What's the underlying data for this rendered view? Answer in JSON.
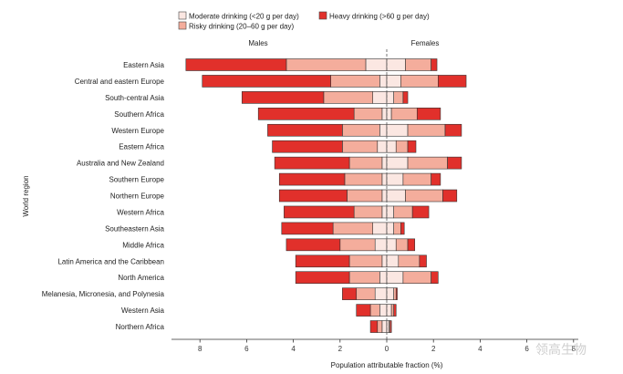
{
  "chart_data": {
    "type": "bar",
    "orientation": "horizontal",
    "stacked": true,
    "diverging": true,
    "legend": {
      "position": "top",
      "entries": [
        {
          "key": "moderate",
          "label": "Moderate drinking (<20 g per day)",
          "color": "#fbe7e2"
        },
        {
          "key": "heavy",
          "label": "Heavy drinking (>60 g per day)",
          "color": "#e1302b"
        },
        {
          "key": "risky",
          "label": "Risky drinking (20–60 g per day)",
          "color": "#f4ad9c"
        }
      ]
    },
    "side_labels": {
      "left": "Males",
      "right": "Females"
    },
    "xlabel": "Population attributable fraction (%)",
    "ylabel": "World region",
    "xlim": [
      -9,
      9
    ],
    "xticks": [
      {
        "value": -8,
        "label": "8"
      },
      {
        "value": -6,
        "label": "6"
      },
      {
        "value": -4,
        "label": "4"
      },
      {
        "value": -2,
        "label": "2"
      },
      {
        "value": 0,
        "label": "0"
      },
      {
        "value": 2,
        "label": "2"
      },
      {
        "value": 4,
        "label": "4"
      },
      {
        "value": 6,
        "label": "6"
      },
      {
        "value": 8,
        "label": "8"
      }
    ],
    "categories": [
      "Eastern Asia",
      "Central and eastern Europe",
      "South-central Asia",
      "Southern Africa",
      "Western Europe",
      "Eastern Africa",
      "Australia and New Zealand",
      "Southern Europe",
      "Northern Europe",
      "Western Africa",
      "Southeastern Asia",
      "Middle Africa",
      "Latin America and the Caribbean",
      "North America",
      "Melanesia, Micronesia, and Polynesia",
      "Western Asia",
      "Northern Africa"
    ],
    "males": {
      "moderate": [
        0.9,
        0.3,
        0.6,
        0.2,
        0.3,
        0.4,
        0.2,
        0.2,
        0.2,
        0.2,
        0.6,
        0.5,
        0.2,
        0.3,
        0.5,
        0.3,
        0.2
      ],
      "risky": [
        3.4,
        2.1,
        2.1,
        1.2,
        1.6,
        1.5,
        1.4,
        1.6,
        1.5,
        1.2,
        1.7,
        1.5,
        1.4,
        1.3,
        0.8,
        0.4,
        0.2
      ],
      "heavy": [
        4.3,
        5.5,
        3.5,
        4.1,
        3.2,
        3.0,
        3.2,
        2.8,
        2.9,
        3.0,
        2.2,
        2.3,
        2.3,
        2.3,
        0.6,
        0.6,
        0.3
      ]
    },
    "females": {
      "moderate": [
        0.8,
        0.6,
        0.3,
        0.2,
        0.9,
        0.4,
        0.9,
        0.7,
        0.8,
        0.3,
        0.3,
        0.4,
        0.5,
        0.7,
        0.3,
        0.2,
        0.1
      ],
      "risky": [
        1.1,
        1.6,
        0.4,
        1.1,
        1.6,
        0.5,
        1.7,
        1.2,
        1.6,
        0.8,
        0.3,
        0.5,
        0.9,
        1.2,
        0.1,
        0.1,
        0.05
      ],
      "heavy": [
        0.25,
        1.2,
        0.2,
        1.0,
        0.7,
        0.35,
        0.6,
        0.4,
        0.6,
        0.7,
        0.15,
        0.3,
        0.3,
        0.3,
        0.05,
        0.1,
        0.05
      ]
    }
  },
  "watermark": "领高生物"
}
